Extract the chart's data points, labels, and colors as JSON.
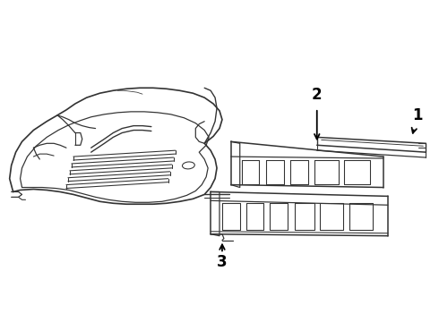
{
  "background_color": "#ffffff",
  "line_color": "#333333",
  "label_color": "#000000",
  "lw": 1.1
}
